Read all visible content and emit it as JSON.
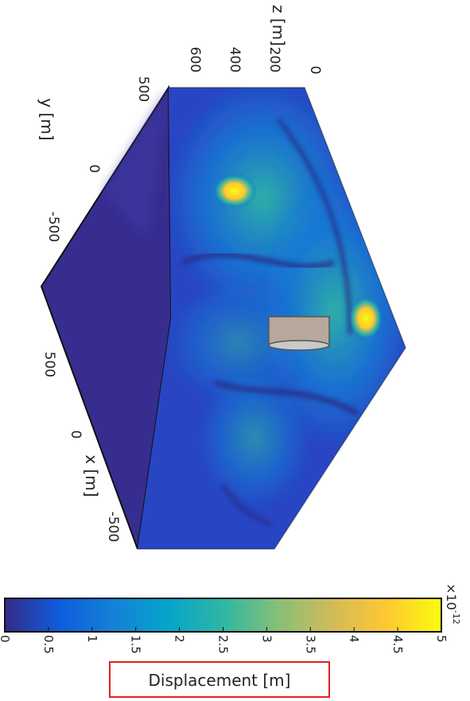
{
  "chart_data": {
    "type": "heatmap",
    "title": "",
    "field": "Displacement magnitude on the faces of a hexagonal-prism domain (3-D view, figure rotated 90°)",
    "axes": {
      "z": {
        "label": "z [m]",
        "ticks": [
          "0",
          "200",
          "400",
          "600"
        ]
      },
      "y": {
        "label": "y [m]",
        "ticks": [
          "500",
          "0",
          "-500"
        ]
      },
      "x": {
        "label": "x [m]",
        "ticks": [
          "500",
          "0",
          "-500"
        ]
      }
    },
    "colorbar": {
      "label": "Displacement [m]",
      "exponent": "×10",
      "exponent_power": "-12",
      "range": [
        0,
        5
      ],
      "ticks": [
        "0",
        "0.5",
        "1",
        "1.5",
        "2",
        "2.5",
        "3",
        "3.5",
        "4",
        "4.5",
        "5"
      ],
      "colormap": [
        "#352a87",
        "#0f5cdd",
        "#1481d6",
        "#06a4ca",
        "#2eb7a4",
        "#87bf77",
        "#d1bb59",
        "#fec832",
        "#f9fb0e"
      ]
    },
    "peaks": [
      {
        "location": "upper face near y≈0, z≈400",
        "value": 5
      },
      {
        "location": "upper face near x≈500, z≈0",
        "value": 4.8
      }
    ],
    "highlighted": "colorbar label"
  }
}
